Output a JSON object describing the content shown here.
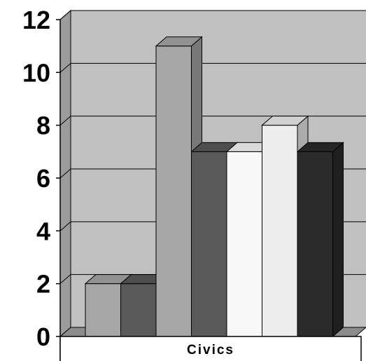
{
  "chart_data": {
    "type": "bar",
    "categories": [
      "Civics"
    ],
    "series": [
      {
        "values": [
          2
        ],
        "color": "#a6a6a6"
      },
      {
        "values": [
          2
        ],
        "color": "#595959"
      },
      {
        "values": [
          11
        ],
        "color": "#a6a6a6"
      },
      {
        "values": [
          7
        ],
        "color": "#595959"
      },
      {
        "values": [
          7
        ],
        "color": "#f8f8f8"
      },
      {
        "values": [
          8
        ],
        "color": "#ededed"
      },
      {
        "values": [
          7
        ],
        "color": "#2b2b2b"
      }
    ],
    "ylim": [
      0,
      12
    ],
    "yticks": [
      "0",
      "2",
      "4",
      "6",
      "8",
      "10",
      "12"
    ],
    "grid": true,
    "style": "3d-column",
    "plot_background": "#c0c0c0"
  }
}
